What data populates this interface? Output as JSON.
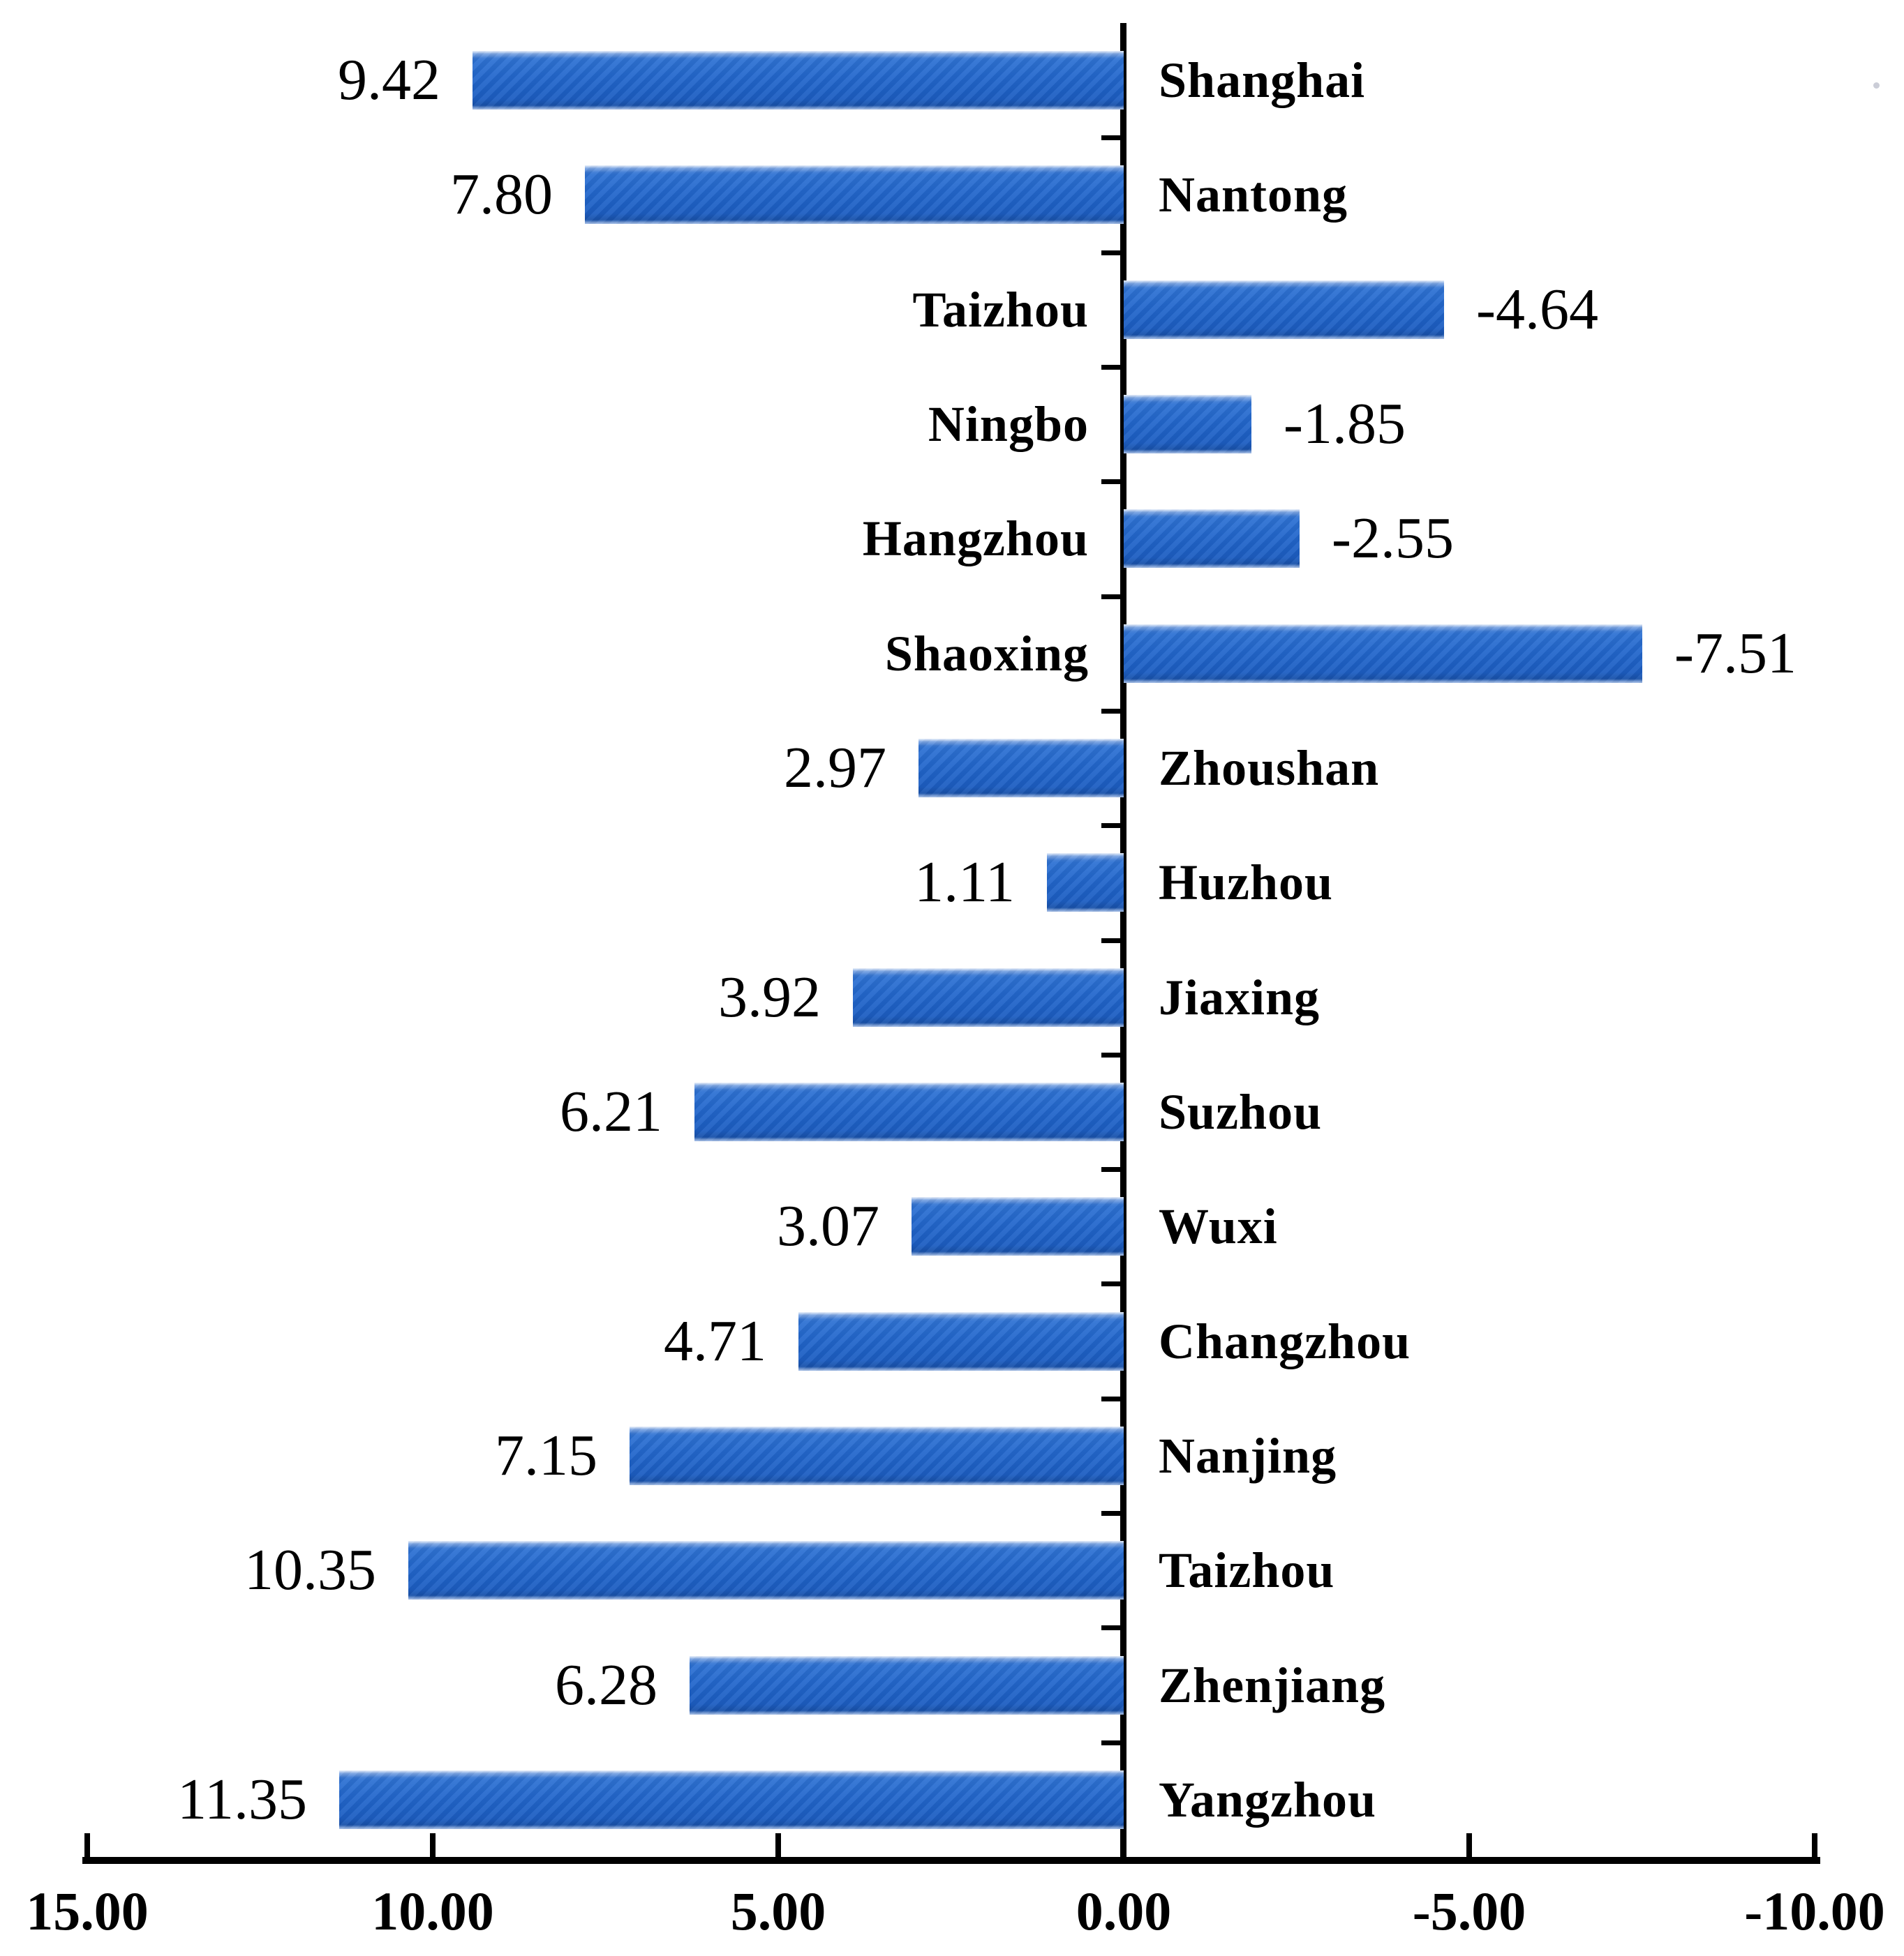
{
  "chart_data": {
    "type": "bar",
    "orientation": "horizontal",
    "title": "",
    "categories": [
      "Shanghai",
      "Nantong",
      "Taizhou",
      "Ningbo",
      "Hangzhou",
      "Shaoxing",
      "Zhoushan",
      "Huzhou",
      "Jiaxing",
      "Suzhou",
      "Wuxi",
      "Changzhou",
      "Nanjing",
      "Taizhou",
      "Zhenjiang",
      "Yangzhou"
    ],
    "values": [
      9.42,
      7.8,
      -4.64,
      -1.85,
      -2.55,
      -7.51,
      2.97,
      1.11,
      3.92,
      6.21,
      3.07,
      4.71,
      7.15,
      10.35,
      6.28,
      11.35
    ],
    "value_labels": [
      "9.42",
      "7.80",
      "-4.64",
      "-1.85",
      "-2.55",
      "-7.51",
      "2.97",
      "1.11",
      "3.92",
      "6.21",
      "3.07",
      "4.71",
      "7.15",
      "10.35",
      "6.28",
      "11.35"
    ],
    "x_axis": {
      "reversed": true,
      "range": [
        15,
        -10
      ],
      "tick_values": [
        15,
        10,
        5,
        0,
        -5,
        -10
      ],
      "tick_labels": [
        "15.00",
        "10.00",
        "5.00",
        "0.00",
        "-5.00",
        "-10.00"
      ]
    },
    "grid": false,
    "legend": null,
    "colors": {
      "bar_main": "#2167cb",
      "bar_light": "#5d8fdc",
      "bar_dark": "#1a59bc",
      "axis": "#000000",
      "text": "#000000",
      "background": "#ffffff"
    }
  }
}
